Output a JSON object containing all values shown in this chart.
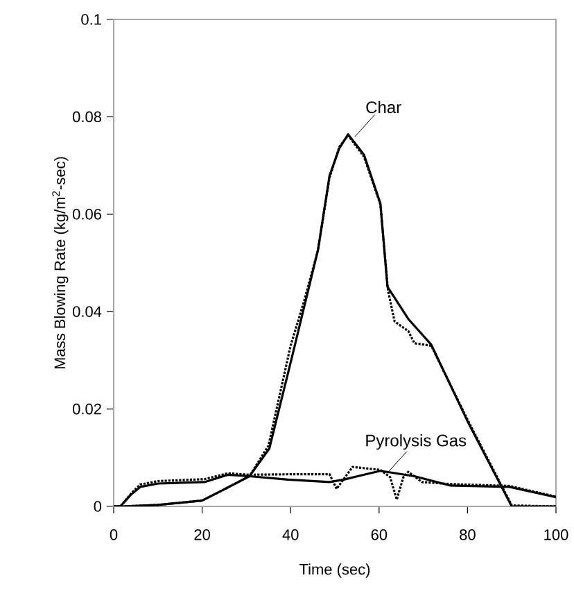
{
  "chart_data": {
    "type": "line",
    "xlabel": "Time (sec)",
    "ylabel": "Mass Blowing Rate (kg/m$^{2}$-sec)",
    "xlim": [
      0,
      100
    ],
    "ylim": [
      0,
      0.1
    ],
    "xticks": [
      0,
      20,
      40,
      60,
      80,
      100
    ],
    "yticks": [
      0,
      0.02,
      0.04,
      0.06,
      0.08,
      0.1
    ],
    "marker": "none",
    "series": [
      {
        "name": "Char",
        "color": "#000000",
        "line_style": "solid",
        "x": [
          0,
          2,
          10,
          20,
          25,
          30.7,
          35.2,
          40.4,
          46.2,
          48.8,
          51,
          53,
          56.6,
          60.3,
          61.9,
          66.6,
          71.8,
          80,
          90,
          100
        ],
        "values": [
          0,
          0,
          0.0003,
          0.0012,
          0.0035,
          0.0062,
          0.0119,
          0.031,
          0.0527,
          0.0679,
          0.0735,
          0.0764,
          0.0722,
          0.0622,
          0.0451,
          0.0385,
          0.0332,
          0.0175,
          0,
          0
        ]
      },
      {
        "color": "#000000",
        "line_style": "dotted",
        "x": [
          0,
          2,
          10,
          20,
          25,
          30.7,
          35,
          40,
          43,
          46.2,
          48.8,
          51,
          53,
          56.6,
          60.3,
          62,
          63.5,
          66.6,
          68,
          71.8,
          80,
          90,
          100
        ],
        "values": [
          0,
          0,
          0.0003,
          0.0012,
          0.0035,
          0.0062,
          0.0125,
          0.033,
          0.042,
          0.0527,
          0.0675,
          0.0738,
          0.0762,
          0.0718,
          0.062,
          0.0445,
          0.038,
          0.036,
          0.0335,
          0.033,
          0.0178,
          0.0002,
          0
        ]
      },
      {
        "name": "Pyrolysis Gas",
        "color": "#000000",
        "line_style": "solid",
        "x": [
          0,
          1.5,
          3.9,
          6,
          10.1,
          20.5,
          25.8,
          30.7,
          39.4,
          48.8,
          52,
          60.3,
          68,
          76,
          89.5,
          100
        ],
        "values": [
          0,
          0,
          0.0024,
          0.004,
          0.0047,
          0.005,
          0.0065,
          0.0062,
          0.0055,
          0.005,
          0.0055,
          0.0073,
          0.0062,
          0.0043,
          0.004,
          0.0019
        ]
      },
      {
        "color": "#000000",
        "line_style": "dotted",
        "x": [
          0,
          1.5,
          3.9,
          6,
          10.1,
          20.5,
          25.8,
          30.7,
          40,
          48.8,
          50.4,
          54,
          60.3,
          62.5,
          64,
          65.5,
          66.6,
          69.7,
          76,
          89.5,
          100
        ],
        "values": [
          0,
          0,
          0.0026,
          0.0045,
          0.0052,
          0.0056,
          0.0068,
          0.0065,
          0.0066,
          0.0066,
          0.0036,
          0.0081,
          0.0075,
          0.006,
          0.0014,
          0.006,
          0.0071,
          0.005,
          0.0046,
          0.0042,
          0.002
        ]
      }
    ]
  }
}
